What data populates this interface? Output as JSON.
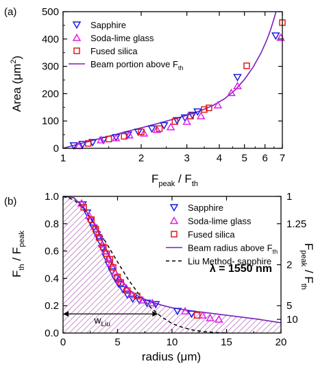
{
  "colors": {
    "sapphire": "#1a1adf",
    "soda_lime": "#e11ee6",
    "fused_silica": "#e01a1a",
    "beam": "#7a1fb8",
    "hatch": "#9a3aa0",
    "axis": "#000000"
  },
  "chart_data": [
    {
      "panel_label": "(a)",
      "type": "scatter",
      "x_scale": "log",
      "xlim": [
        1,
        7
      ],
      "ylim": [
        0,
        500
      ],
      "x_ticks": [
        1,
        2,
        3,
        4,
        5,
        6,
        7
      ],
      "x_tick_labels": [
        "1",
        "2",
        "3",
        "4",
        "5",
        "6",
        "7"
      ],
      "y_ticks": [
        0,
        100,
        200,
        300,
        400,
        500
      ],
      "y_tick_labels": [
        "0",
        "100",
        "200",
        "300",
        "400",
        "500"
      ],
      "xlabel": {
        "main": "F",
        "sub1": "peak",
        "mid": " / F",
        "sub2": "th"
      },
      "ylabel": {
        "main": "Area (μm",
        "sup": "2",
        "end": ")"
      },
      "legend_position": "top-left",
      "series": [
        {
          "name": "Sapphire",
          "marker": "triangle-down",
          "color": "#1a1adf",
          "x": [
            1.1,
            1.19,
            1.3,
            1.43,
            1.6,
            1.78,
            1.95,
            2.2,
            2.45,
            2.75,
            2.95,
            3.15,
            3.3,
            4.7,
            6.6
          ],
          "y": [
            10,
            15,
            22,
            30,
            40,
            50,
            60,
            72,
            84,
            102,
            112,
            122,
            134,
            260,
            412
          ]
        },
        {
          "name": "Soda-lime glass",
          "marker": "triangle-up",
          "color": "#e11ee6",
          "x": [
            1.15,
            1.4,
            1.6,
            1.8,
            2.05,
            2.3,
            2.6,
            3.0,
            3.4,
            3.95,
            4.45,
            4.7,
            6.9
          ],
          "y": [
            9,
            30,
            38,
            48,
            55,
            68,
            78,
            98,
            118,
            158,
            203,
            228,
            405
          ]
        },
        {
          "name": "Fused silica",
          "marker": "square",
          "color": "#e01a1a",
          "x": [
            1.25,
            1.5,
            1.72,
            2.0,
            2.35,
            2.7,
            3.1,
            3.5,
            3.65,
            5.1,
            7.0
          ],
          "y": [
            18,
            34,
            44,
            60,
            72,
            98,
            118,
            142,
            148,
            302,
            460
          ]
        },
        {
          "name": "Beam portion above F",
          "name_sub": "th",
          "marker": "line",
          "color": "#7a1fb8",
          "x": [
            1.0,
            1.1,
            1.2,
            1.4,
            1.6,
            1.8,
            2.0,
            2.3,
            2.6,
            3.0,
            3.4,
            3.8,
            4.2,
            4.6,
            5.0,
            5.4,
            5.8,
            6.1,
            6.3,
            6.5,
            6.6,
            6.7
          ],
          "y": [
            0,
            11,
            20,
            37,
            51,
            64,
            75,
            90,
            104,
            121,
            138,
            158,
            182,
            213,
            252,
            297,
            350,
            397,
            433,
            474,
            496,
            520
          ]
        }
      ]
    },
    {
      "panel_label": "(b)",
      "type": "scatter",
      "xlim": [
        0,
        20
      ],
      "ylim": [
        0,
        1.0
      ],
      "x_ticks": [
        0,
        5,
        10,
        15,
        20
      ],
      "x_tick_labels": [
        "0",
        "5",
        "10",
        "15",
        "20"
      ],
      "y_ticks": [
        0,
        0.2,
        0.4,
        0.6,
        0.8,
        1.0
      ],
      "y_tick_labels": [
        "0.0",
        "0.2",
        "0.4",
        "0.6",
        "0.8",
        "1.0"
      ],
      "right_axis": {
        "ticks": [
          1,
          1.25,
          2,
          5,
          10
        ],
        "tick_labels": [
          "1",
          "1.25",
          "2",
          "5",
          "10"
        ],
        "label": {
          "main": "F",
          "sub1": "peak",
          "mid": " / F",
          "sub2": "th"
        }
      },
      "xlabel": "radius (μm)",
      "ylabel": {
        "main": "F",
        "sub1": "th",
        "mid": " / F",
        "sub2": "peak"
      },
      "annotation": "λ = 1550 nm",
      "w_label": {
        "main": "w",
        "sub": "Liu"
      },
      "w_arrow_x": [
        0,
        8.7
      ],
      "w_arrow_y": 0.14,
      "legend_position": "top-right",
      "series": [
        {
          "name": "Sapphire",
          "marker": "triangle-down",
          "color": "#1a1adf",
          "x": [
            1.8,
            2.2,
            2.5,
            2.8,
            3.1,
            3.4,
            3.6,
            3.9,
            4.2,
            4.5,
            4.8,
            5.1,
            5.5,
            5.9,
            6.4,
            7.0,
            7.7,
            8.5,
            10.5,
            11.8
          ],
          "y": [
            0.94,
            0.88,
            0.82,
            0.77,
            0.72,
            0.67,
            0.62,
            0.56,
            0.5,
            0.45,
            0.4,
            0.36,
            0.32,
            0.28,
            0.25,
            0.24,
            0.22,
            0.21,
            0.16,
            0.14
          ]
        },
        {
          "name": "Soda-lime glass",
          "marker": "triangle-up",
          "color": "#e11ee6",
          "x": [
            1.7,
            2.4,
            2.9,
            3.2,
            3.6,
            3.9,
            4.2,
            4.4,
            4.8,
            5.2,
            5.8,
            6.3,
            7.3,
            8.2,
            11.2,
            12.8,
            13.5,
            14.3
          ],
          "y": [
            0.95,
            0.86,
            0.78,
            0.73,
            0.65,
            0.6,
            0.55,
            0.51,
            0.44,
            0.39,
            0.33,
            0.28,
            0.24,
            0.22,
            0.16,
            0.13,
            0.11,
            0.1
          ]
        },
        {
          "name": "Fused silica",
          "marker": "square",
          "color": "#e01a1a",
          "x": [
            1.9,
            2.6,
            3.0,
            3.3,
            3.7,
            4.0,
            4.3,
            4.6,
            5.0,
            5.3,
            5.9,
            6.8,
            12.3
          ],
          "y": [
            0.92,
            0.83,
            0.76,
            0.7,
            0.63,
            0.58,
            0.54,
            0.48,
            0.41,
            0.37,
            0.31,
            0.27,
            0.13
          ]
        },
        {
          "name": "Beam radius above F",
          "name_sub": "th",
          "marker": "line",
          "color": "#7a1fb8",
          "x": [
            0,
            1,
            2,
            3,
            4,
            5,
            6,
            7,
            8,
            9,
            10,
            12,
            14,
            16,
            18,
            20
          ],
          "y": [
            1.0,
            0.99,
            0.91,
            0.78,
            0.6,
            0.43,
            0.32,
            0.265,
            0.23,
            0.205,
            0.185,
            0.16,
            0.14,
            0.12,
            0.1,
            0.075
          ]
        },
        {
          "name": "Liu Method- sapphire",
          "marker": "dashed",
          "color": "#000000",
          "x": [
            0,
            1,
            2,
            3,
            4,
            5,
            6,
            7,
            8,
            9,
            10,
            11,
            12,
            13,
            14,
            15
          ],
          "y": [
            1.0,
            0.975,
            0.9,
            0.785,
            0.655,
            0.52,
            0.39,
            0.28,
            0.19,
            0.12,
            0.07,
            0.04,
            0.02,
            0.01,
            0.004,
            0.001
          ]
        }
      ]
    }
  ]
}
